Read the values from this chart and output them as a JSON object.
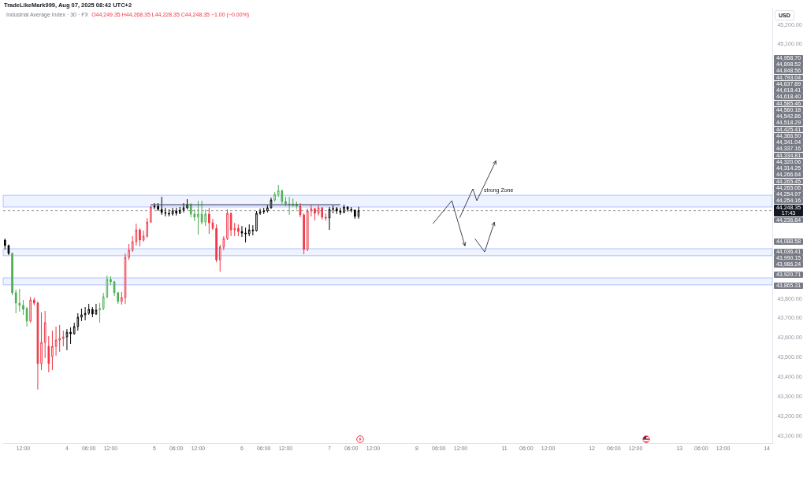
{
  "chart_data": {
    "type": "candlestick",
    "title": "Industrial Average Index · 30 · FX",
    "subtitle": "O44,249.35 H44,268.35 L44,228.35 C44,248.35 −1.00 (−0.00%)",
    "ylabel": "USD",
    "categories": [
      null,
      null,
      null,
      null,
      null,
      "12:00",
      null,
      null,
      null,
      null,
      null,
      null,
      null,
      null,
      null,
      null,
      null,
      "4",
      null,
      null,
      null,
      null,
      null,
      "06:00",
      null,
      null,
      null,
      null,
      null,
      "12:00",
      null,
      null,
      null,
      null,
      null,
      null,
      null,
      null,
      null,
      null,
      null,
      "5",
      null,
      null,
      null,
      null,
      null,
      "06:00",
      null,
      null,
      null,
      null,
      null,
      "12:00",
      null,
      null,
      null,
      null,
      null,
      null,
      null,
      null,
      null,
      null,
      null,
      "6",
      null,
      null,
      null,
      null,
      null,
      "06:00",
      null,
      null,
      null,
      null,
      null,
      "12:00",
      null,
      null,
      null,
      null,
      null,
      null,
      null,
      null,
      null,
      null,
      null,
      "7",
      null,
      null,
      null,
      null,
      null,
      "06:00",
      null,
      null,
      null,
      null,
      null,
      "12:00",
      null,
      null,
      null,
      null,
      null,
      null,
      null,
      null,
      null,
      null,
      null,
      "8",
      null,
      null,
      null,
      null,
      null,
      "06:00",
      null,
      null,
      null,
      null,
      null,
      "12:00",
      null,
      null,
      null,
      null,
      null,
      null,
      null,
      null,
      null,
      null,
      null,
      "11",
      null,
      null,
      null,
      null,
      null,
      "06:00",
      null,
      null,
      null,
      null,
      null,
      "12:00",
      null,
      null,
      null,
      null,
      null,
      null,
      null,
      null,
      null,
      null,
      null,
      "12",
      null,
      null,
      null,
      null,
      null,
      "06:00",
      null,
      null,
      null,
      null,
      null,
      "12:00",
      null,
      null,
      null,
      null,
      null,
      null,
      null,
      null,
      null,
      null,
      null,
      "13",
      null,
      null,
      null,
      null,
      null,
      "06:00",
      null,
      null,
      null,
      null,
      null,
      "12:00",
      null,
      null,
      null,
      null,
      null,
      null,
      null,
      null,
      null,
      null,
      null,
      "14",
      null
    ],
    "ohlc": [
      [
        44098,
        44106,
        44050,
        44070
      ],
      [
        44070,
        44075,
        44022,
        44030
      ],
      [
        44030,
        44035,
        43816,
        43829
      ],
      [
        43829,
        43845,
        43724,
        43776
      ],
      [
        43776,
        43849,
        43732,
        43764
      ],
      [
        43764,
        43792,
        43716,
        43744
      ],
      [
        43748,
        43756,
        43656,
        43684
      ],
      [
        43684,
        43808,
        43676,
        43792
      ],
      [
        43792,
        43804,
        43764,
        43776
      ],
      [
        43776,
        43784,
        43334,
        43467
      ],
      [
        43467,
        43728,
        43434,
        43575
      ],
      [
        43575,
        43736,
        43495,
        43676
      ],
      [
        43555,
        43607,
        43422,
        43467
      ],
      [
        43503,
        43635,
        43434,
        43555
      ],
      [
        43555,
        43656,
        43507,
        43587
      ],
      [
        43587,
        43664,
        43527,
        43595
      ],
      [
        43595,
        43635,
        43555,
        43603
      ],
      [
        43603,
        43643,
        43535,
        43627
      ],
      [
        43627,
        43652,
        43567,
        43619
      ],
      [
        43619,
        43676,
        43615,
        43656
      ],
      [
        43656,
        43724,
        43635,
        43704
      ],
      [
        43704,
        43748,
        43684,
        43716
      ],
      [
        43716,
        43756,
        43688,
        43724
      ],
      [
        43724,
        43772,
        43716,
        43744
      ],
      [
        43744,
        43756,
        43704,
        43720
      ],
      [
        43720,
        43772,
        43716,
        43740
      ],
      [
        43740,
        43776,
        43676,
        43748
      ],
      [
        43748,
        43828,
        43740,
        43808
      ],
      [
        43808,
        43917,
        43800,
        43897
      ],
      [
        43897,
        43913,
        43869,
        43885
      ],
      [
        43885,
        43890,
        43812,
        43829
      ],
      [
        43829,
        43833,
        43772,
        43784
      ],
      [
        43784,
        43833,
        43768,
        43804
      ],
      [
        43804,
        44030,
        43772,
        44010
      ],
      [
        44010,
        44078,
        43997,
        44046
      ],
      [
        44046,
        44118,
        44038,
        44090
      ],
      [
        44090,
        44182,
        44070,
        44150
      ],
      [
        44150,
        44158,
        44066,
        44098
      ],
      [
        44098,
        44146,
        44090,
        44118
      ],
      [
        44118,
        44210,
        44110,
        44190
      ],
      [
        44190,
        44275,
        44186,
        44267
      ],
      [
        44267,
        44287,
        44255,
        44271
      ],
      [
        44271,
        44287,
        44247,
        44255
      ],
      [
        44255,
        44319,
        44227,
        44239
      ],
      [
        44239,
        44263,
        44219,
        44235
      ],
      [
        44235,
        44255,
        44219,
        44231
      ],
      [
        44231,
        44263,
        44223,
        44247
      ],
      [
        44247,
        44263,
        44223,
        44235
      ],
      [
        44235,
        44267,
        44231,
        44251
      ],
      [
        44251,
        44287,
        44239,
        44263
      ],
      [
        44263,
        44307,
        44255,
        44279
      ],
      [
        44279,
        44287,
        44215,
        44231
      ],
      [
        44231,
        44255,
        44195,
        44215
      ],
      [
        44215,
        44299,
        44126,
        44231
      ],
      [
        44231,
        44299,
        44178,
        44190
      ],
      [
        44190,
        44255,
        44170,
        44231
      ],
      [
        44231,
        44263,
        44130,
        44186
      ],
      [
        44186,
        44206,
        44150,
        44158
      ],
      [
        44158,
        44178,
        43985,
        43997
      ],
      [
        43997,
        44074,
        43937,
        44062
      ],
      [
        44062,
        44118,
        44046,
        44106
      ],
      [
        44106,
        44255,
        44098,
        44235
      ],
      [
        44235,
        44239,
        44118,
        44150
      ],
      [
        44150,
        44186,
        44118,
        44158
      ],
      [
        44158,
        44178,
        44118,
        44142
      ],
      [
        44142,
        44170,
        44114,
        44134
      ],
      [
        44134,
        44162,
        44086,
        44130
      ],
      [
        44130,
        44178,
        44118,
        44150
      ],
      [
        44150,
        44174,
        44122,
        44146
      ],
      [
        44146,
        44247,
        44142,
        44235
      ],
      [
        44235,
        44259,
        44227,
        44243
      ],
      [
        44243,
        44263,
        44231,
        44247
      ],
      [
        44247,
        44275,
        44239,
        44263
      ],
      [
        44263,
        44315,
        44259,
        44303
      ],
      [
        44303,
        44343,
        44295,
        44331
      ],
      [
        44331,
        44380,
        44319,
        44351
      ],
      [
        44351,
        44355,
        44283,
        44295
      ],
      [
        44295,
        44319,
        44271,
        44283
      ],
      [
        44283,
        44319,
        44227,
        44275
      ],
      [
        44275,
        44311,
        44267,
        44283
      ],
      [
        44283,
        44295,
        44255,
        44271
      ],
      [
        44271,
        44287,
        44215,
        44227
      ],
      [
        44227,
        44235,
        44026,
        44050
      ],
      [
        44050,
        44259,
        44042,
        44247
      ],
      [
        44247,
        44279,
        44219,
        44259
      ],
      [
        44259,
        44263,
        44198,
        44235
      ],
      [
        44235,
        44275,
        44223,
        44263
      ],
      [
        44263,
        44267,
        44203,
        44215
      ],
      [
        44215,
        44235,
        44198,
        44211
      ],
      [
        44211,
        44267,
        44150,
        44255
      ],
      [
        44255,
        44275,
        44235,
        44259
      ],
      [
        44259,
        44267,
        44231,
        44247
      ],
      [
        44247,
        44263,
        44227,
        44239
      ],
      [
        44239,
        44279,
        44235,
        44267
      ],
      [
        44267,
        44271,
        44243,
        44255
      ],
      [
        44255,
        44267,
        44239,
        44251
      ],
      [
        44251,
        44255,
        44207,
        44219
      ],
      [
        44219,
        44268.35,
        44207,
        44248.35
      ],
      null,
      null,
      null,
      null,
      null,
      null,
      null,
      null,
      null,
      null,
      null,
      null,
      null,
      null,
      null,
      null,
      null,
      null,
      null,
      null,
      null,
      null,
      null,
      null,
      null,
      null,
      null,
      null,
      null,
      null,
      null,
      null,
      null,
      null,
      null,
      null,
      null,
      null,
      null,
      null,
      null,
      null,
      null,
      null,
      null,
      null,
      null,
      null,
      null,
      null,
      null,
      null,
      null,
      null,
      null,
      null,
      null,
      null,
      null,
      null,
      null,
      null,
      null,
      null,
      null,
      null,
      null,
      null,
      null,
      null,
      null,
      null,
      null,
      null,
      null,
      null,
      null,
      null,
      null,
      null,
      null,
      null,
      null,
      null,
      null,
      null,
      null,
      null,
      null,
      null,
      null,
      null,
      null,
      null,
      null,
      null,
      null,
      null,
      null,
      null,
      null,
      null,
      null,
      null,
      null,
      null,
      null,
      null,
      null,
      null,
      null,
      null,
      null
    ],
    "colors": [
      "#000000",
      "#000000",
      "#4caf50",
      "#4caf50",
      "#4caf50",
      "#4caf50",
      "#4caf50",
      "#f23645",
      "#f23645",
      "#f23645",
      "#f23645",
      "#f23645",
      "#f23645",
      "#f23645",
      "#f23645",
      "#f23645",
      "#f23645",
      "#000000",
      "#000000",
      "#000000",
      "#000000",
      "#000000",
      "#000000",
      "#000000",
      "#000000",
      "#000000",
      "#4caf50",
      "#4caf50",
      "#4caf50",
      "#4caf50",
      "#4caf50",
      "#4caf50",
      "#f23645",
      "#f23645",
      "#f23645",
      "#f23645",
      "#f23645",
      "#f23645",
      "#f23645",
      "#f23645",
      "#f23645",
      "#000000",
      "#000000",
      "#000000",
      "#000000",
      "#000000",
      "#000000",
      "#000000",
      "#000000",
      "#000000",
      "#000000",
      "#4caf50",
      "#4caf50",
      "#4caf50",
      "#4caf50",
      "#4caf50",
      "#f23645",
      "#f23645",
      "#f23645",
      "#f23645",
      "#f23645",
      "#f23645",
      "#f23645",
      "#f23645",
      "#f23645",
      "#000000",
      "#000000",
      "#000000",
      "#000000",
      "#000000",
      "#000000",
      "#000000",
      "#000000",
      "#000000",
      "#4caf50",
      "#4caf50",
      "#4caf50",
      "#4caf50",
      "#4caf50",
      "#4caf50",
      "#4caf50",
      "#f23645",
      "#f23645",
      "#f23645",
      "#f23645",
      "#f23645",
      "#f23645",
      "#f23645",
      "#f23645",
      "#000000",
      "#000000",
      "#000000",
      "#000000",
      "#000000",
      "#000000",
      "#000000",
      "#000000",
      "#000000",
      null,
      null,
      null,
      null,
      null,
      null,
      null,
      null,
      null,
      null,
      null,
      null,
      null,
      null,
      null,
      null,
      null,
      null,
      null,
      null,
      null,
      null,
      null,
      null,
      null,
      null,
      null,
      null,
      null,
      null,
      null,
      null,
      null,
      null,
      null,
      null,
      null,
      null,
      null,
      null,
      null,
      null,
      null,
      null,
      null,
      null,
      null,
      null,
      null,
      null,
      null,
      null,
      null,
      null,
      null,
      null,
      null,
      null,
      null,
      null,
      null,
      null,
      null,
      null,
      null,
      null,
      null,
      null,
      null,
      null,
      null,
      null,
      null,
      null,
      null,
      null,
      null,
      null,
      null,
      null,
      null,
      null,
      null,
      null,
      null,
      null,
      null,
      null,
      null,
      null,
      null,
      null,
      null,
      null,
      null,
      null,
      null,
      null,
      null,
      null,
      null,
      null,
      null,
      null,
      null,
      null,
      null,
      null,
      null,
      null,
      null,
      null,
      null
    ],
    "series": [
      {
        "type": "line",
        "color": "#50535e",
        "values": [
          null,
          null,
          null,
          null,
          null,
          null,
          null,
          null,
          null,
          null,
          null,
          null,
          null,
          null,
          null,
          null,
          null,
          null,
          null,
          null,
          null,
          null,
          null,
          null,
          null,
          null,
          null,
          null,
          null,
          null,
          null,
          null,
          null,
          null,
          null,
          null,
          null,
          null,
          null,
          null,
          44279,
          44279,
          44279,
          44279,
          44279,
          44279,
          44279,
          44279,
          44279,
          44279,
          44279,
          44279,
          44279,
          44279,
          44279,
          44279,
          44279,
          44279,
          44279,
          44279,
          44279,
          44279,
          44279,
          44279,
          44279,
          44279,
          44279,
          44279,
          44279,
          44279,
          44279,
          44279,
          44279,
          44279,
          44279,
          44279,
          44279,
          44279,
          44279,
          44279,
          44279,
          44279,
          44279,
          44279,
          44279,
          44279,
          44279,
          44279,
          44279,
          44279,
          44279,
          44279,
          44279,
          null,
          null,
          null,
          null,
          null,
          null,
          null,
          null,
          null,
          null,
          null,
          null,
          null,
          null,
          null,
          null,
          null,
          null,
          null,
          null,
          null,
          null,
          null,
          null,
          null,
          null,
          null,
          null,
          null,
          null,
          null,
          null,
          null,
          null,
          null,
          null,
          null,
          null,
          null,
          null,
          null,
          null,
          null,
          null,
          null,
          null,
          null,
          null,
          null,
          null,
          null,
          null,
          null,
          null,
          null,
          null,
          null,
          null,
          null,
          null,
          null,
          null,
          null,
          null,
          null,
          null,
          null,
          null,
          null,
          null,
          null,
          null,
          null,
          null,
          null,
          null,
          null,
          null,
          null,
          null,
          null,
          null,
          null,
          null,
          null,
          null,
          null,
          null,
          null,
          null,
          null,
          null,
          null,
          null,
          null,
          null,
          null,
          null,
          null,
          null,
          null,
          null,
          null,
          null,
          null,
          null,
          null,
          null,
          null,
          null,
          null,
          null,
          null,
          null,
          null,
          null,
          null,
          null
        ]
      }
    ],
    "ylim": [
      43060,
      45285
    ],
    "yticks": [
      {
        "value": 43100,
        "label": "43,100.00"
      },
      {
        "value": 43200,
        "label": "43,200.00"
      },
      {
        "value": 43300,
        "label": "43,300.00"
      },
      {
        "value": 43400,
        "label": "43,400.00"
      },
      {
        "value": 43500,
        "label": "43,500.00"
      },
      {
        "value": 43600,
        "label": "43,600.00"
      },
      {
        "value": 43700,
        "label": "43,700.00"
      },
      {
        "value": 43800,
        "label": "43,800.00"
      },
      {
        "value": 45100,
        "label": "45,100.00"
      },
      {
        "value": 45200,
        "label": "45,200.00"
      }
    ],
    "ref_lines": [
      {
        "axis": "y",
        "value": 44248.35,
        "label": "44,248.35\n17:43",
        "color": "#9598a1",
        "line_style": "dotted"
      }
    ],
    "bands": [
      {
        "axis": "y",
        "from": 44267,
        "to": 44327,
        "label": "strong Zone",
        "color": "#2962ff"
      },
      {
        "axis": "y",
        "from": 43869,
        "to": 43905,
        "color": "#2962ff"
      },
      {
        "axis": "y",
        "from": 44018,
        "to": 44054,
        "color": "#2962ff"
      }
    ],
    "annotations": [
      "TradeLikeMark999, Aug 07, 2025 08:42 UTC+2",
      "44,958.70",
      "44,898.52",
      "44,848.56",
      "44,793.04",
      "44,637.89",
      "44,618.41",
      "44,618.40",
      "44,585.46",
      "44,560.18",
      "44,542.86",
      "44,518.29",
      "44,425.41",
      "44,366.50",
      "44,341.04",
      "44,337.16",
      "44,334.81",
      "44,320.06",
      "44,314.25",
      "44,266.64",
      "44,265.45",
      "44,265.06",
      "44,254.97",
      "44,254.16",
      "44,236.84",
      "44,088.58",
      "44,036.41",
      "43,990.15",
      "43,986.24",
      "43,920.71",
      "43,865.31"
    ]
  }
}
